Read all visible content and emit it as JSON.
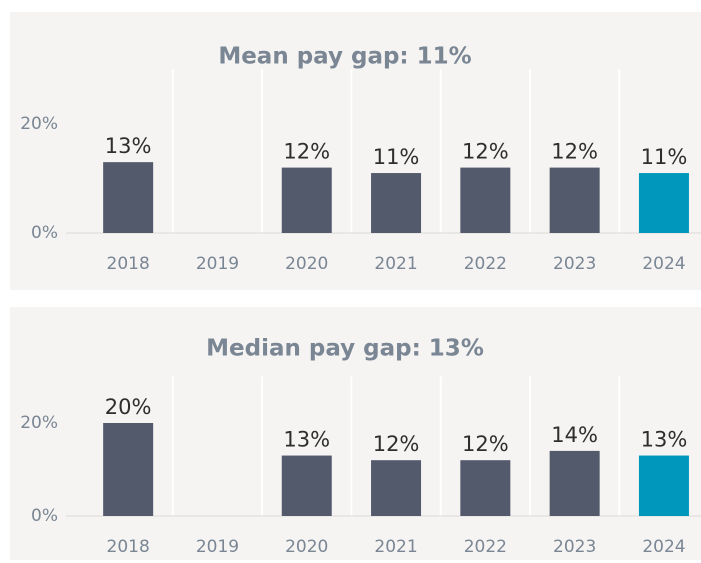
{
  "chart_data": [
    {
      "type": "bar",
      "title": "Mean pay gap: 11%",
      "categories": [
        "2018",
        "2019",
        "2020",
        "2021",
        "2022",
        "2023",
        "2024"
      ],
      "values": [
        13,
        null,
        12,
        11,
        12,
        12,
        11
      ],
      "value_labels": [
        "13%",
        null,
        "12%",
        "11%",
        "12%",
        "12%",
        "11%"
      ],
      "colors": [
        "#525a6b",
        "#525a6b",
        "#525a6b",
        "#525a6b",
        "#525a6b",
        "#525a6b",
        "#0097bd"
      ],
      "ylim": [
        0,
        30
      ],
      "yticks": [
        {
          "value": 0,
          "label": "0%"
        },
        {
          "value": 20,
          "label": "20%"
        }
      ]
    },
    {
      "type": "bar",
      "title": "Median pay gap: 13%",
      "categories": [
        "2018",
        "2019",
        "2020",
        "2021",
        "2022",
        "2023",
        "2024"
      ],
      "values": [
        20,
        null,
        13,
        12,
        12,
        14,
        13
      ],
      "value_labels": [
        "20%",
        null,
        "13%",
        "12%",
        "12%",
        "14%",
        "13%"
      ],
      "colors": [
        "#525a6b",
        "#525a6b",
        "#525a6b",
        "#525a6b",
        "#525a6b",
        "#525a6b",
        "#0097bd"
      ],
      "ylim": [
        0,
        30
      ],
      "yticks": [
        {
          "value": 0,
          "label": "0%"
        },
        {
          "value": 20,
          "label": "20%"
        }
      ]
    }
  ]
}
